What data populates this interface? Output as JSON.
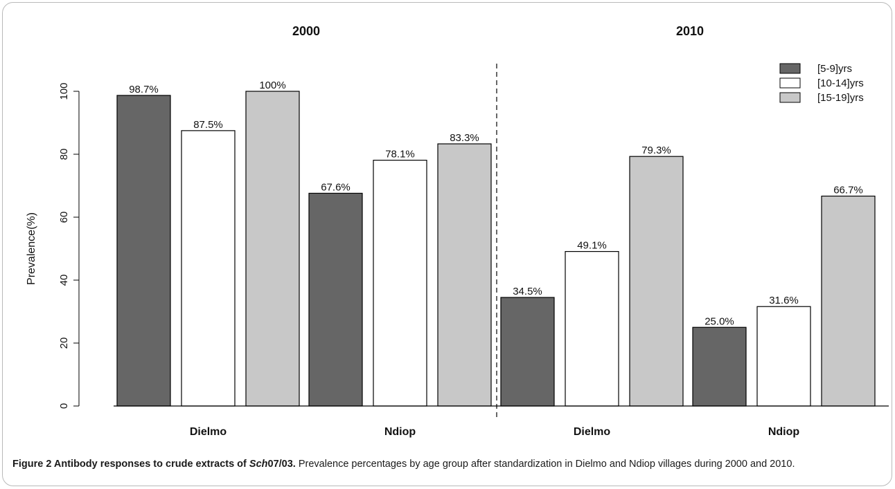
{
  "chart_data": {
    "type": "bar",
    "panels": [
      {
        "title": "2000",
        "categories": [
          "Dielmo",
          "Ndiop"
        ]
      },
      {
        "title": "2010",
        "categories": [
          "Dielmo",
          "Ndiop"
        ]
      }
    ],
    "categories": [
      "Dielmo",
      "Ndiop",
      "Dielmo",
      "Ndiop"
    ],
    "series": [
      {
        "name": "[5-9]yrs",
        "color": "#666666",
        "values": [
          98.7,
          67.6,
          34.5,
          25.0
        ],
        "labels": [
          "98.7%",
          "67.6%",
          "34.5%",
          "25.0%"
        ]
      },
      {
        "name": "[10-14]yrs",
        "color": "#ffffff",
        "values": [
          87.5,
          78.1,
          49.1,
          31.6
        ],
        "labels": [
          "87.5%",
          "78.1%",
          "49.1%",
          "31.6%"
        ]
      },
      {
        "name": "[15-19]yrs",
        "color": "#c8c8c8",
        "values": [
          100,
          83.3,
          79.3,
          66.7
        ],
        "labels": [
          "100%",
          "83.3%",
          "79.3%",
          "66.7%"
        ]
      }
    ],
    "ylabel": "Prevalence(%)",
    "xlabel": "",
    "ylim": [
      0,
      100
    ],
    "yticks": [
      "0",
      "20",
      "40",
      "60",
      "80",
      "100"
    ],
    "grid": false,
    "legend_position": "top-right",
    "separator": "dashed vertical line between 2000 and 2010"
  },
  "caption": {
    "title_part1": "Figure 2 Antibody responses to crude extracts of ",
    "title_italic": "Sch",
    "title_part2": "07/03.",
    "text": " Prevalence percentages by age group after standardization in Dielmo and Ndiop villages during 2000 and 2010."
  }
}
